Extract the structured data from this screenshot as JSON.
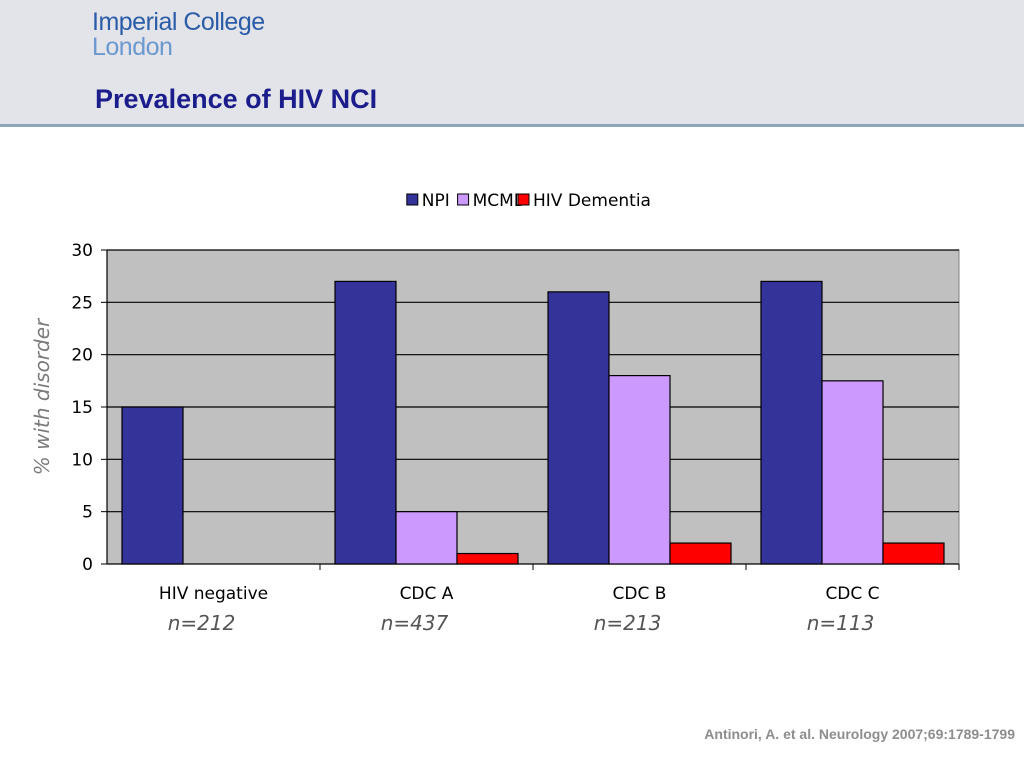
{
  "header": {
    "logo_line1": "Imperial College",
    "logo_line2": "London",
    "title": "Prevalence of HIV NCI"
  },
  "citation": "Antinori, A. et al. Neurology 2007;69:1789-1799",
  "colors": {
    "NPI": "#333399",
    "MCMD": "#cc99ff",
    "HIV Dementia": "#ff0000",
    "plot_bg": "#c0c0c0"
  },
  "chart_data": {
    "type": "bar",
    "title": "",
    "xlabel": "",
    "ylabel": "% with disorder",
    "ylim": [
      0,
      30
    ],
    "yticks": [
      0,
      5,
      10,
      15,
      20,
      25,
      30
    ],
    "grid": true,
    "legend_position": "top",
    "categories": [
      "HIV negative",
      "CDC A",
      "CDC B",
      "CDC C"
    ],
    "category_sublabels": [
      "n=212",
      "n=437",
      "n=213",
      "n=113"
    ],
    "series": [
      {
        "name": "NPI",
        "values": [
          15,
          27,
          26,
          27
        ]
      },
      {
        "name": "MCMD",
        "values": [
          0,
          5,
          18,
          17.5
        ]
      },
      {
        "name": "HIV Dementia",
        "values": [
          0,
          1,
          2,
          2
        ]
      }
    ]
  }
}
